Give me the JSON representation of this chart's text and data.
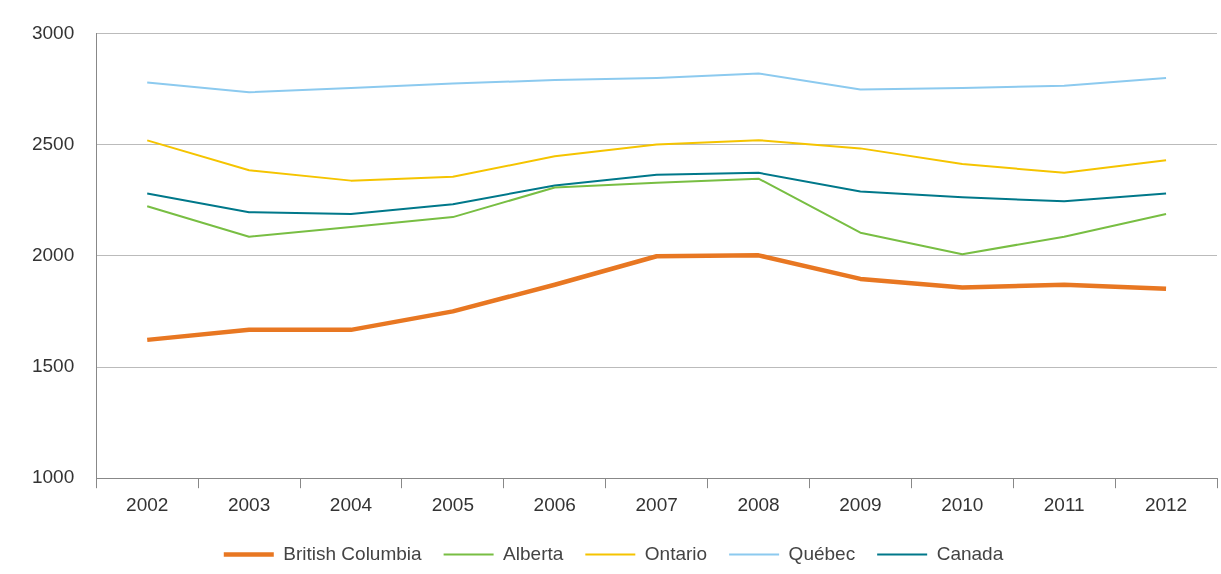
{
  "chart_data": {
    "type": "line",
    "categories": [
      "2002",
      "2003",
      "2004",
      "2005",
      "2006",
      "2007",
      "2008",
      "2009",
      "2010",
      "2011",
      "2012"
    ],
    "series": [
      {
        "name": "British Columbia",
        "color": "#e87722",
        "values": [
          1622,
          1667,
          1667,
          1750,
          1870,
          1998,
          2002,
          1896,
          1857,
          1870,
          1852
        ]
      },
      {
        "name": "Alberta",
        "color": "#78be43",
        "values": [
          2223,
          2086,
          2130,
          2174,
          2307,
          2329,
          2347,
          2104,
          2007,
          2086,
          2188
        ]
      },
      {
        "name": "Ontario",
        "color": "#f5c400",
        "values": [
          2519,
          2385,
          2338,
          2355,
          2448,
          2500,
          2520,
          2483,
          2413,
          2373,
          2430
        ]
      },
      {
        "name": "Québec",
        "color": "#8ccaef",
        "values": [
          2779,
          2735,
          2755,
          2775,
          2790,
          2800,
          2820,
          2748,
          2755,
          2765,
          2800
        ]
      },
      {
        "name": "Canada",
        "color": "#00788a",
        "values": [
          2280,
          2196,
          2188,
          2232,
          2316,
          2364,
          2373,
          2289,
          2263,
          2245,
          2280
        ]
      }
    ],
    "ylim": [
      1000,
      3000
    ],
    "yticks": [
      1000,
      1500,
      2000,
      2500,
      3000
    ],
    "grid": "y",
    "legend": "bottom",
    "marker": "none",
    "line_style": "solid"
  }
}
